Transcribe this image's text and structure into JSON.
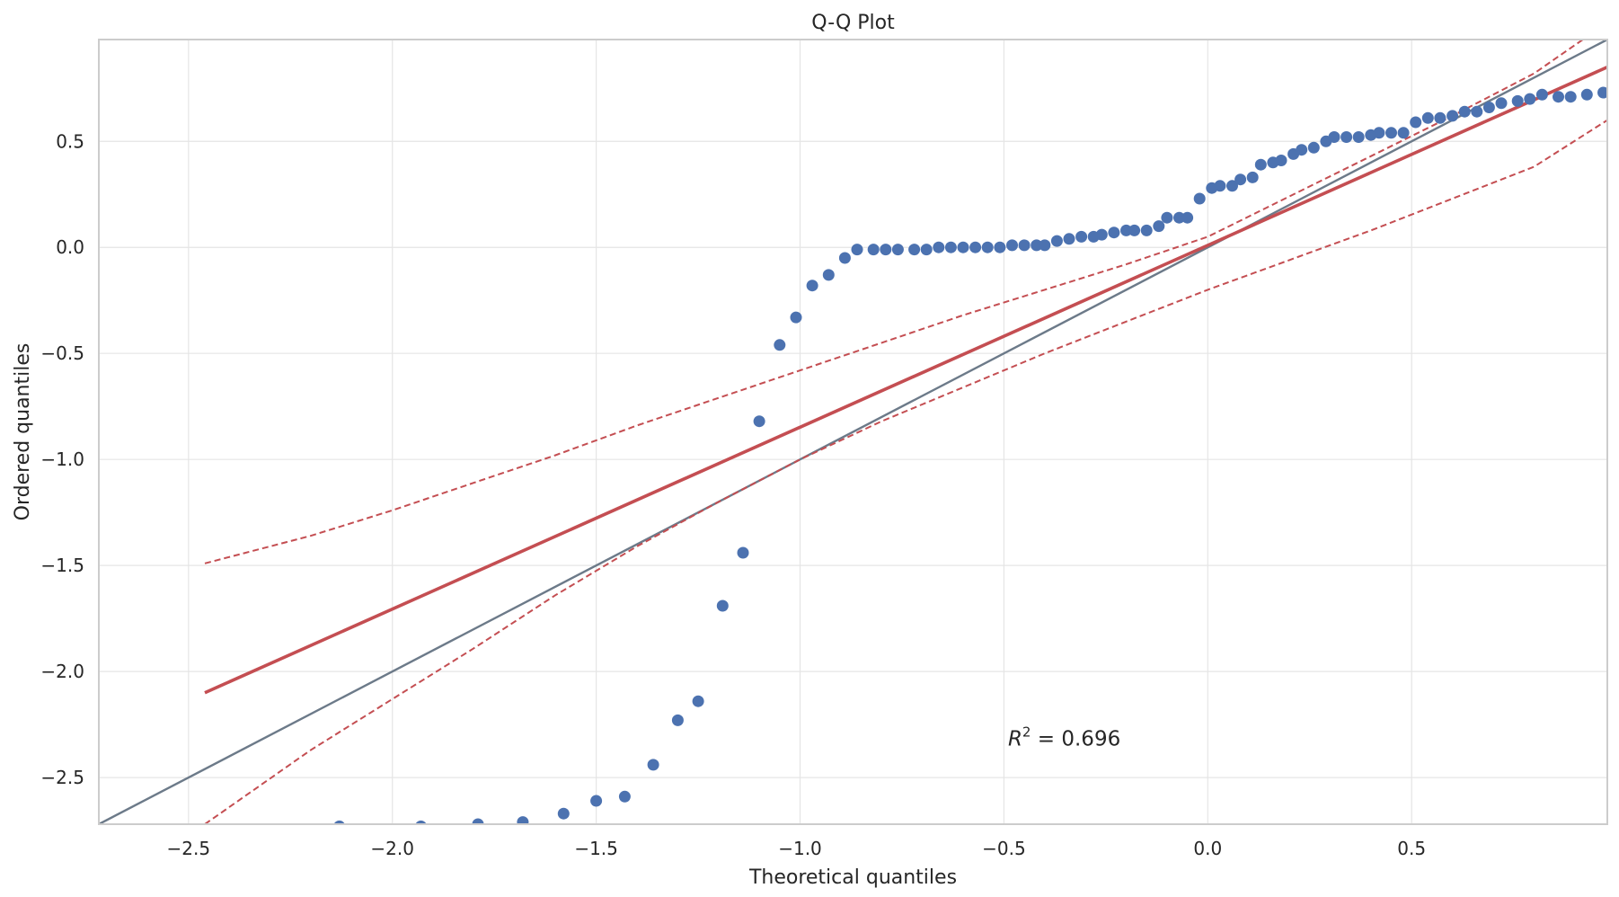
{
  "chart_data": {
    "type": "scatter",
    "title": "Q-Q Plot",
    "xlabel": "Theoretical quantiles",
    "ylabel": "Ordered quantiles",
    "xlim": [
      -2.72,
      0.98
    ],
    "ylim": [
      -2.72,
      0.98
    ],
    "xticks": [
      -2.5,
      -2.0,
      -1.5,
      -1.0,
      -0.5,
      0.0,
      0.5
    ],
    "xtick_labels": [
      "−2.5",
      "−2.0",
      "−1.5",
      "−1.0",
      "−0.5",
      "0.0",
      "0.5"
    ],
    "yticks": [
      -2.5,
      -2.0,
      -1.5,
      -1.0,
      -0.5,
      0.0,
      0.5
    ],
    "ytick_labels": [
      "−2.5",
      "−2.0",
      "−1.5",
      "−1.0",
      "−0.5",
      "0.0",
      "0.5"
    ],
    "grid": true,
    "annotation": {
      "prefix": "R",
      "sup": "2",
      "text": " = 0.696",
      "x": -0.49,
      "y": -2.35
    },
    "colors": {
      "points": "#4c72b0",
      "fit_line": "#c44e52",
      "band": "#c44e52",
      "reference_line": "#6c7a89",
      "grid": "#e5e5e5",
      "frame": "#cccccc"
    },
    "reference_line": {
      "x": [
        -2.72,
        0.98
      ],
      "y": [
        -2.72,
        0.98
      ]
    },
    "fit_line": {
      "x": [
        -2.46,
        0.98
      ],
      "y": [
        -2.1,
        0.85
      ]
    },
    "confidence_band_upper": {
      "x": [
        -2.46,
        -2.2,
        -2.0,
        -1.8,
        -1.6,
        -1.4,
        -1.2,
        -1.0,
        -0.8,
        -0.6,
        -0.4,
        -0.2,
        0.0,
        0.2,
        0.4,
        0.6,
        0.8,
        0.92
      ],
      "y": [
        -1.49,
        -1.36,
        -1.24,
        -1.11,
        -0.98,
        -0.84,
        -0.71,
        -0.58,
        -0.45,
        -0.32,
        -0.2,
        -0.08,
        0.05,
        0.24,
        0.43,
        0.62,
        0.82,
        0.98
      ]
    },
    "confidence_band_lower": {
      "x": [
        -2.46,
        -2.2,
        -2.0,
        -1.8,
        -1.6,
        -1.4,
        -1.2,
        -1.0,
        -0.8,
        -0.6,
        -0.4,
        -0.2,
        0.0,
        0.2,
        0.4,
        0.6,
        0.8,
        0.98
      ],
      "y": [
        -2.72,
        -2.37,
        -2.13,
        -1.89,
        -1.64,
        -1.41,
        -1.2,
        -1.0,
        -0.82,
        -0.66,
        -0.5,
        -0.35,
        -0.2,
        -0.06,
        0.08,
        0.23,
        0.38,
        0.6
      ]
    },
    "series": [
      {
        "x": [
          -2.13,
          -1.93,
          -1.79,
          -1.68,
          -1.58,
          -1.5,
          -1.43,
          -1.36,
          -1.3,
          -1.25,
          -1.19,
          -1.14,
          -1.1,
          -1.05,
          -1.01,
          -0.97,
          -0.93,
          -0.89,
          -0.86,
          -0.82,
          -0.79,
          -0.76,
          -0.72,
          -0.69,
          -0.66,
          -0.63,
          -0.6,
          -0.57,
          -0.54,
          -0.51,
          -0.48,
          -0.45,
          -0.42,
          -0.4,
          -0.37,
          -0.34,
          -0.31,
          -0.28,
          -0.26,
          -0.23,
          -0.2,
          -0.18,
          -0.15,
          -0.12,
          -0.1,
          -0.07,
          -0.05,
          -0.02,
          0.01,
          0.03,
          0.06,
          0.08,
          0.11,
          0.13,
          0.16,
          0.18,
          0.21,
          0.23,
          0.26,
          0.29,
          0.31,
          0.34,
          0.37,
          0.4,
          0.42,
          0.45,
          0.48,
          0.51,
          0.54,
          0.57,
          0.6,
          0.63,
          0.66,
          0.69,
          0.72,
          0.76,
          0.79,
          0.82,
          0.86,
          0.89,
          0.93,
          0.97
        ],
        "y": [
          -2.73,
          -2.73,
          -2.72,
          -2.71,
          -2.67,
          -2.61,
          -2.59,
          -2.44,
          -2.23,
          -2.14,
          -1.69,
          -1.44,
          -0.82,
          -0.46,
          -0.33,
          -0.18,
          -0.13,
          -0.05,
          -0.01,
          -0.01,
          -0.01,
          -0.01,
          -0.01,
          -0.01,
          0.0,
          0.0,
          0.0,
          0.0,
          0.0,
          0.0,
          0.01,
          0.01,
          0.01,
          0.01,
          0.03,
          0.04,
          0.05,
          0.05,
          0.06,
          0.07,
          0.08,
          0.08,
          0.08,
          0.1,
          0.14,
          0.14,
          0.14,
          0.23,
          0.28,
          0.29,
          0.29,
          0.32,
          0.33,
          0.39,
          0.4,
          0.41,
          0.44,
          0.46,
          0.47,
          0.5,
          0.52,
          0.52,
          0.52,
          0.53,
          0.54,
          0.54,
          0.54,
          0.59,
          0.61,
          0.61,
          0.62,
          0.64,
          0.64,
          0.66,
          0.68,
          0.69,
          0.7,
          0.72,
          0.71,
          0.71,
          0.72,
          0.73
        ]
      }
    ]
  }
}
